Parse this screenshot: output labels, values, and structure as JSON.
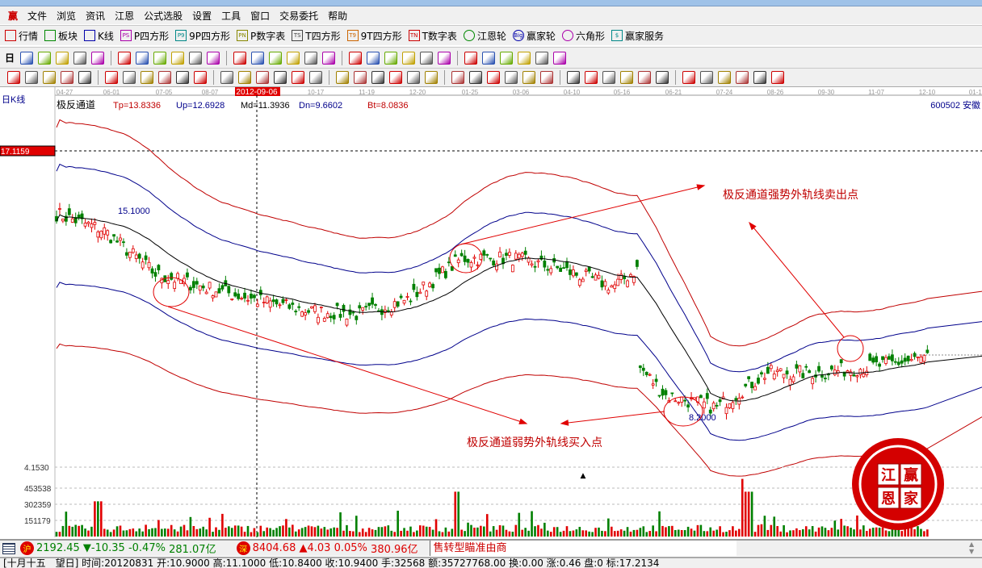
{
  "app_icon": "赢",
  "menu": [
    "文件",
    "浏览",
    "资讯",
    "江恩",
    "公式选股",
    "设置",
    "工具",
    "窗口",
    "交易委托",
    "帮助"
  ],
  "toolbar1": [
    {
      "icon": "table-icon",
      "label": "行情"
    },
    {
      "icon": "blocks-icon",
      "label": "板块"
    },
    {
      "icon": "candlestick-icon",
      "label": "K线"
    },
    {
      "icon": "ps-icon",
      "badge": "PS",
      "label": "P四方形"
    },
    {
      "icon": "p9-icon",
      "badge": "P9",
      "label": "9P四方形"
    },
    {
      "icon": "pn-icon",
      "badge": "PN",
      "label": "P数字表"
    },
    {
      "icon": "ts-icon",
      "badge": "TS",
      "label": "T四方形"
    },
    {
      "icon": "t9-icon",
      "badge": "T9",
      "label": "9T四方形"
    },
    {
      "icon": "tn-icon",
      "badge": "TN",
      "label": "T数字表"
    },
    {
      "icon": "target-icon",
      "label": "江恩轮"
    },
    {
      "icon": "big-wheel-icon",
      "badge": "Big",
      "label": "赢家轮"
    },
    {
      "icon": "hexagon-icon",
      "label": "六角形"
    },
    {
      "icon": "dollar-icon",
      "badge": "$",
      "label": "赢家服务"
    }
  ],
  "toolbar2": {
    "period_label": "日",
    "icons": [
      "period-dropdown-icon",
      "chart-type-icon",
      "notes-icon",
      "bar3-icon",
      "bar9-icon",
      "candle-dropdown-icon",
      "formula-icon",
      "flag-icon",
      "first-icon",
      "last-icon",
      "left-icon",
      "right-icon",
      "move-left-icon",
      "move-right-icon",
      "zoom-in-icon",
      "zoom-out-icon",
      "expand-icon",
      "fit-icon",
      "hand-icon",
      "crosshair-icon",
      "draw-line-icon",
      "festival-icon",
      "ai-icon",
      "calendar-icon",
      "calculator-icon",
      "notepad-icon",
      "save-icon",
      "network-icon",
      "printer-icon"
    ]
  },
  "toolbar3": {
    "icons": [
      "pen-icon",
      "parallel-lines-icon",
      "gold-icon",
      "gold2-icon",
      "fib-icon",
      "spiral-icon",
      "eraser-icon",
      "circle-grid-icon",
      "grid-lines-icon",
      "n2-icon",
      "angle-icon",
      "target-cross-icon",
      "web-icon",
      "square-web-icon",
      "percent-lines-icon",
      "shen-icon",
      "ying-icon",
      "ruler-icon",
      "width-icon",
      "box-icon",
      "fan-icon",
      "square-fan-icon",
      "red-fan-icon",
      "angle-line-icon",
      "v-icon",
      "grid-icon",
      "grid2-icon",
      "multi-line-icon",
      "table-lines-icon",
      "percent-icon",
      "percent2-icon",
      "coin-icon",
      "gold-line-icon",
      "gold-line2-icon",
      "flag2-icon",
      "gold3-icon",
      "fib2-icon",
      "fib3-icon",
      "fib4-icon",
      "fib5-icon",
      "fib6-icon"
    ]
  },
  "chart": {
    "period_label": "日K线",
    "indicator_name": "极反通道",
    "tp": "Tp=13.8336",
    "up": "Up=12.6928",
    "md": "Md=11.3936",
    "dn": "Dn=9.6602",
    "bt": "Bt=8.0836",
    "stock_label": "600502 安徽",
    "date_ticks": [
      "04-27",
      "06-01",
      "07-05",
      "08-07",
      "2012-09-06",
      "10-17",
      "11-19",
      "12-20",
      "01-25",
      "03-06",
      "04-10",
      "05-16",
      "06-21",
      "07-24",
      "08-26",
      "09-30",
      "11-07",
      "12-10",
      "01-10"
    ],
    "cursor_date": "2012-09-06",
    "cursor_price": "17.1159",
    "high_label": "15.1000",
    "low_label": "8.2000",
    "annotation_sell": "极反通道强势外轨线卖出点",
    "annotation_buy": "极反通道弱势外轨线买入点",
    "volume_labels": [
      "4.1530",
      "453538",
      "302359",
      "151179"
    ],
    "colors": {
      "up": "#e00000",
      "down": "#008000",
      "tp_bt": "#c00000",
      "up_dn": "#00008b",
      "md": "#000000",
      "cursor": "#e00000"
    }
  },
  "chart_data": {
    "type": "candlestick",
    "approx_closes": [
      [
        "04-27",
        15.0
      ],
      [
        "06-01",
        14.45
      ],
      [
        "07-05",
        12.96
      ],
      [
        "08-07",
        12.55
      ],
      [
        "2012-09-06",
        12.09
      ],
      [
        "10-17",
        11.73
      ],
      [
        "11-19",
        11.6
      ],
      [
        "12-20",
        12.14
      ],
      [
        "01-25",
        13.5
      ],
      [
        "03-06",
        13.5
      ],
      [
        "04-10",
        13.1
      ],
      [
        "05-16",
        12.55
      ],
      [
        "06-21",
        8.88
      ],
      [
        "07-24",
        8.47
      ],
      [
        "08-26",
        9.64
      ],
      [
        "09-30",
        9.64
      ],
      [
        "11-07",
        9.83
      ],
      [
        "12-10",
        10.1
      ],
      [
        "01-10",
        10.24
      ]
    ],
    "ylim": [
      4.15,
      17.1159
    ],
    "volume_ticks": [
      151179,
      302359,
      453538
    ]
  },
  "status": {
    "sh_badge": "沪",
    "sh_index": "2192.45",
    "sh_change": "▼-10.35",
    "sh_pct": "-0.47%",
    "sh_amount": "281.07亿",
    "sz_badge": "深",
    "sz_index": "8404.68",
    "sz_change": "▲4.03",
    "sz_pct": "0.05%",
    "sz_amount": "380.96亿",
    "ticker_text": "售转型瞄准由商"
  },
  "info_line": "[十月十五　望日] 时间:20120831 开:10.9000 高:11.1000 低:10.8400 收:10.9400 手:32568 额:35727768.00 换:0.00 涨:0.46 盘:0 标:17.2134",
  "logo_chars": [
    "江",
    "赢",
    "恩",
    "家"
  ]
}
